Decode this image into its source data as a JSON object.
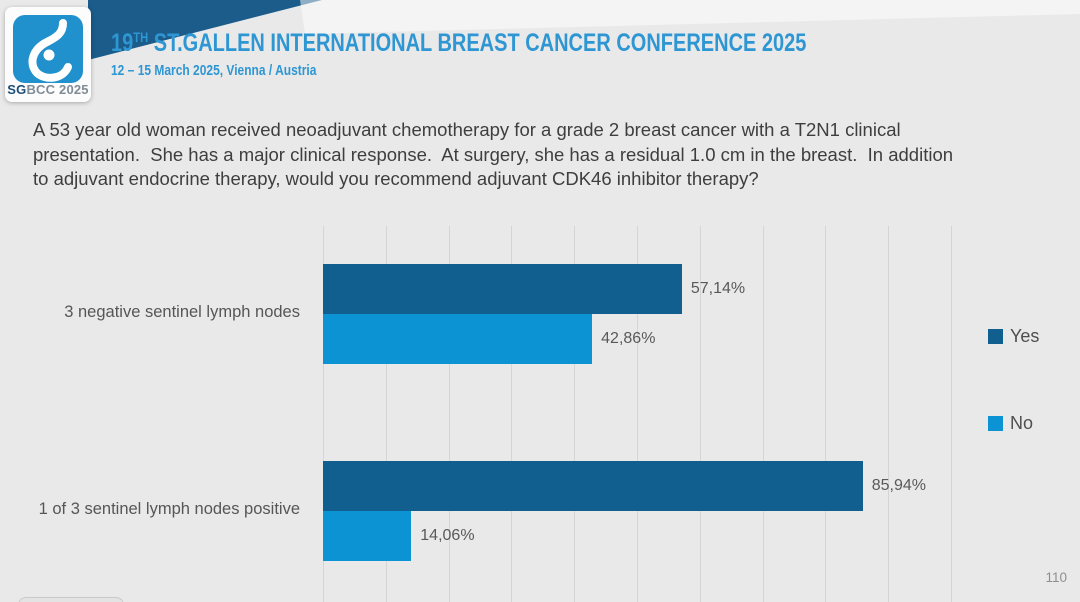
{
  "header": {
    "title_num": "19",
    "title_sup": "TH",
    "title_rest": " ST.GALLEN INTERNATIONAL BREAST CANCER CONFERENCE 2025",
    "subtitle": "12 – 15 March 2025, Vienna / Austria",
    "logo": {
      "sg": "SG",
      "rest": "BCC 2025"
    },
    "accent_blue": "#2e96d3",
    "banner_blue": "#1b5c8b",
    "logo_square_blue": "#2191cd"
  },
  "question": "A 53 year old woman received neoadjuvant chemotherapy for a grade 2 breast cancer with a T2N1 clinical presentation.  She has a major clinical response.  At surgery, she has a residual 1.0 cm in the breast.  In addition to adjuvant endocrine therapy, would you recommend adjuvant CDK46 inhibitor therapy?",
  "page_number": "110",
  "chart_data": {
    "type": "bar",
    "orientation": "horizontal",
    "categories": [
      "3 negative sentinel lymph nodes",
      "1 of 3 sentinel lymph nodes positive"
    ],
    "series": [
      {
        "name": "Yes",
        "color": "#105f8f",
        "values": [
          57.14,
          85.94
        ]
      },
      {
        "name": "No",
        "color": "#0b93d3",
        "values": [
          42.86,
          14.06
        ]
      }
    ],
    "value_labels": [
      [
        "57,14%",
        "42,86%"
      ],
      [
        "85,94%",
        "14,06%"
      ]
    ],
    "xlim": [
      0,
      100
    ],
    "gridline_step": 10,
    "grid": true,
    "legend_position": "right"
  }
}
